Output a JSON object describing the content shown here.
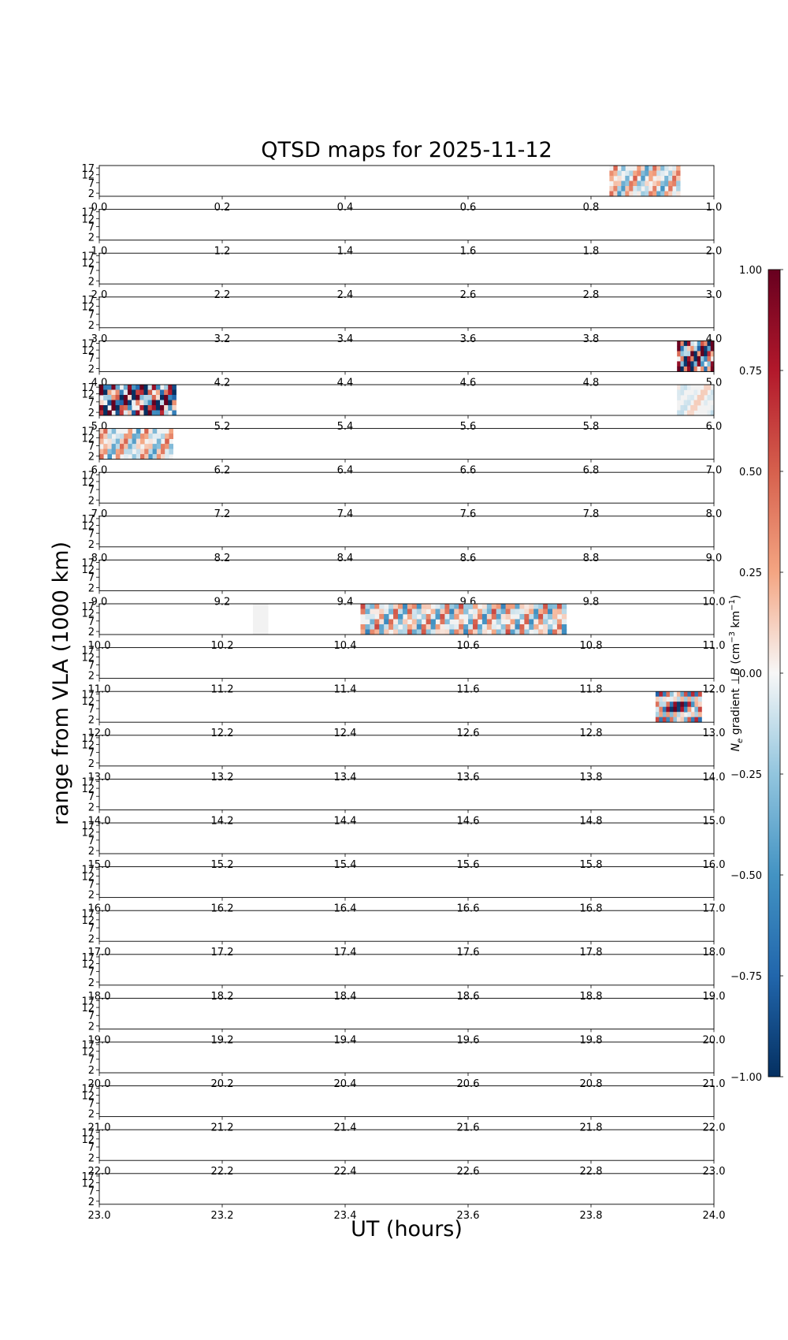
{
  "chart_data": {
    "type": "heatmap",
    "title": "QTSD maps for 2025-11-12",
    "xlabel": "UT (hours)",
    "ylabel": "range from VLA (1000 km)",
    "y_ticks": [
      "17",
      "12",
      "7",
      "2"
    ],
    "panel_hours": 24,
    "colorbar": {
      "label": "N_e gradient ⊥B (cm⁻³ km⁻¹)",
      "label_parts": {
        "n": "N",
        "e": "e",
        "mid": " gradient ⊥",
        "b": "B",
        "units": " (cm",
        "exp1": "−3",
        "km": " km",
        "exp2": "−1",
        "close": ")"
      },
      "min": -1.0,
      "max": 1.0,
      "ticks": [
        "1.00",
        "0.75",
        "0.50",
        "0.25",
        "0.00",
        "−0.25",
        "−0.50",
        "−0.75",
        "−1.00"
      ],
      "tick_values": [
        1.0,
        0.75,
        0.5,
        0.25,
        0.0,
        -0.25,
        -0.5,
        -0.75,
        -1.0
      ]
    },
    "x_tick_labels": [
      [
        "0.0",
        "0.2",
        "0.4",
        "0.6",
        "0.8",
        "1.0"
      ],
      [
        "1.0",
        "1.2",
        "1.4",
        "1.6",
        "1.8",
        "2.0"
      ],
      [
        "2.0",
        "2.2",
        "2.4",
        "2.6",
        "2.8",
        "3.0"
      ],
      [
        "3.0",
        "3.2",
        "3.4",
        "3.6",
        "3.8",
        "4.0"
      ],
      [
        "4.0",
        "4.2",
        "4.4",
        "4.6",
        "4.8",
        "5.0"
      ],
      [
        "5.0",
        "5.2",
        "5.4",
        "5.6",
        "5.8",
        "6.0"
      ],
      [
        "6.0",
        "6.2",
        "6.4",
        "6.6",
        "6.8",
        "7.0"
      ],
      [
        "7.0",
        "7.2",
        "7.4",
        "7.6",
        "7.8",
        "8.0"
      ],
      [
        "8.0",
        "8.2",
        "8.4",
        "8.6",
        "8.8",
        "9.0"
      ],
      [
        "9.0",
        "9.2",
        "9.4",
        "9.6",
        "9.8",
        "10.0"
      ],
      [
        "10.0",
        "10.2",
        "10.4",
        "10.6",
        "10.8",
        "11.0"
      ],
      [
        "11.0",
        "11.2",
        "11.4",
        "11.6",
        "11.8",
        "12.0"
      ],
      [
        "12.0",
        "12.2",
        "12.4",
        "12.6",
        "12.8",
        "13.0"
      ],
      [
        "13.0",
        "13.2",
        "13.4",
        "13.6",
        "13.8",
        "14.0"
      ],
      [
        "14.0",
        "14.2",
        "14.4",
        "14.6",
        "14.8",
        "15.0"
      ],
      [
        "15.0",
        "15.2",
        "15.4",
        "15.6",
        "15.8",
        "16.0"
      ],
      [
        "16.0",
        "16.2",
        "16.4",
        "16.6",
        "16.8",
        "17.0"
      ],
      [
        "17.0",
        "17.2",
        "17.4",
        "17.6",
        "17.8",
        "18.0"
      ],
      [
        "18.0",
        "18.2",
        "18.4",
        "18.6",
        "18.8",
        "19.0"
      ],
      [
        "19.0",
        "19.2",
        "19.4",
        "19.6",
        "19.8",
        "20.0"
      ],
      [
        "20.0",
        "20.2",
        "20.4",
        "20.6",
        "20.8",
        "21.0"
      ],
      [
        "21.0",
        "21.2",
        "21.4",
        "21.6",
        "21.8",
        "22.0"
      ],
      [
        "22.0",
        "22.2",
        "22.4",
        "22.6",
        "22.8",
        "23.0"
      ],
      [
        "23.0",
        "23.2",
        "23.4",
        "23.6",
        "23.8",
        "24.0"
      ]
    ],
    "segments": [
      {
        "hour_start": 0.83,
        "hour_end": 0.945,
        "pattern": "light"
      },
      {
        "hour_start": 4.94,
        "hour_end": 5.0,
        "pattern": "strong"
      },
      {
        "hour_start": 5.0,
        "hour_end": 5.125,
        "pattern": "strong"
      },
      {
        "hour_start": 5.94,
        "hour_end": 6.0,
        "pattern": "faint"
      },
      {
        "hour_start": 6.0,
        "hour_end": 6.12,
        "pattern": "light"
      },
      {
        "hour_start": 10.25,
        "hour_end": 10.275,
        "pattern": "blank"
      },
      {
        "hour_start": 10.425,
        "hour_end": 10.76,
        "pattern": "sparse"
      },
      {
        "hour_start": 12.905,
        "hour_end": 12.98,
        "pattern": "medium"
      }
    ]
  }
}
